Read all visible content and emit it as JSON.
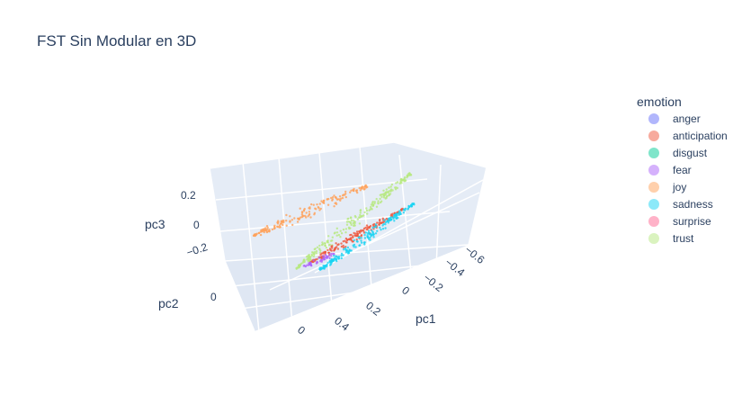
{
  "chart_data": {
    "type": "scatter",
    "projection": "3d",
    "title": "FST Sin Modular en 3D",
    "axes": {
      "x": {
        "label": "pc1",
        "ticks": [
          "0",
          "0.2",
          "0.4",
          "−0.2",
          "−0.4",
          "−0.6"
        ]
      },
      "y": {
        "label": "pc2",
        "ticks": [
          "0",
          "0.4",
          "0"
        ]
      },
      "z": {
        "label": "pc3",
        "ticks": [
          "0.2",
          "0",
          "−0.2"
        ]
      }
    },
    "legend": {
      "title": "emotion",
      "placement": "right",
      "items": [
        {
          "name": "anger",
          "color": "#636efa"
        },
        {
          "name": "anticipation",
          "color": "#EF553B"
        },
        {
          "name": "disgust",
          "color": "#00cc96"
        },
        {
          "name": "fear",
          "color": "#ab63fa"
        },
        {
          "name": "joy",
          "color": "#FFA15A"
        },
        {
          "name": "sadness",
          "color": "#19d3f3"
        },
        {
          "name": "surprise",
          "color": "#FF6692"
        },
        {
          "name": "trust",
          "color": "#B6E880"
        }
      ]
    },
    "clusters": [
      {
        "series": "joy",
        "shape": "elongated band",
        "approx_pc3_level": "0.2"
      },
      {
        "series": "trust",
        "shape": "elongated band",
        "approx_pc3_level": "0"
      },
      {
        "series": "anticipation",
        "shape": "elongated band",
        "approx_pc3_level": "-0.2"
      },
      {
        "series": "sadness",
        "shape": "elongated band",
        "approx_pc3_level": "-0.2"
      },
      {
        "series": "fear",
        "shape": "small cluster",
        "approx_pc3_level": "-0.2"
      }
    ],
    "grid": true,
    "background_color": "#e5ecf6"
  }
}
